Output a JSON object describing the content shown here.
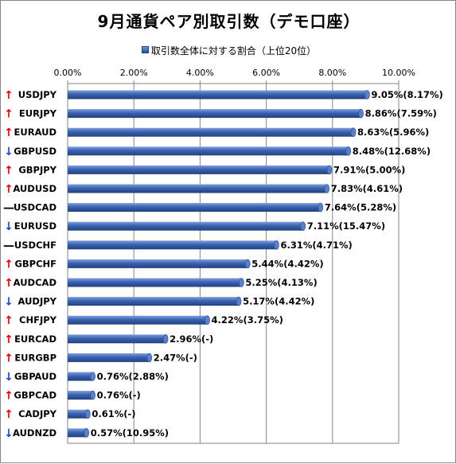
{
  "chart_data": {
    "type": "bar",
    "orientation": "horizontal",
    "title": "9月通貨ペア別取引数（デモ口座）",
    "legend": {
      "entry": "取引数全体に対する割合（上位20位）",
      "position": "top"
    },
    "xlim": [
      0,
      10
    ],
    "x_ticks": [
      "0.00%",
      "2.00%",
      "4.00%",
      "6.00%",
      "8.00%",
      "10.00%"
    ],
    "x_tick_values": [
      0,
      2,
      4,
      6,
      8,
      10
    ],
    "grid": true,
    "bar_color": "#3a62b0",
    "categories": [
      "USDJPY",
      "EURJPY",
      "EURAUD",
      "GBPUSD",
      "GBPJPY",
      "AUDUSD",
      "USDCAD",
      "EURUSD",
      "USDCHF",
      "GBPCHF",
      "AUDCAD",
      "AUDJPY",
      "CHFJPY",
      "EURCAD",
      "EURGBP",
      "GBPAUD",
      "GBPCAD",
      "CADJPY",
      "AUDNZD"
    ],
    "values": [
      9.05,
      8.86,
      8.63,
      8.48,
      7.91,
      7.83,
      7.64,
      7.11,
      6.31,
      5.44,
      5.25,
      5.17,
      4.22,
      2.96,
      2.47,
      0.76,
      0.76,
      0.61,
      0.57
    ],
    "data_labels": [
      "9.05%(8.17%)",
      "8.86%(7.59%)",
      "8.63%(5.96%)",
      "8.48%(12.68%)",
      "7.91%(5.00%)",
      "7.83%(4.61%)",
      "7.64%(5.28%)",
      "7.11%(15.47%)",
      "6.31%(4.71%)",
      "5.44%(4.42%)",
      "5.25%(4.13%)",
      "5.17%(4.42%)",
      "4.22%(3.75%)",
      "2.96%(-)",
      "2.47%(-)",
      "0.76%(2.88%)",
      "0.76%(-)",
      "0.61%(-)",
      "0.57%(10.95%)"
    ],
    "trend": [
      "up",
      "up",
      "up",
      "down",
      "up",
      "up",
      "flat",
      "down",
      "flat",
      "up",
      "up",
      "down",
      "up",
      "up",
      "up",
      "down",
      "up",
      "up",
      "down"
    ],
    "trend_symbols": {
      "up": "↑",
      "down": "↓",
      "flat": "—"
    },
    "trend_colors": {
      "up": "#e00000",
      "down": "#1f3fd1",
      "flat": "#000000"
    }
  }
}
